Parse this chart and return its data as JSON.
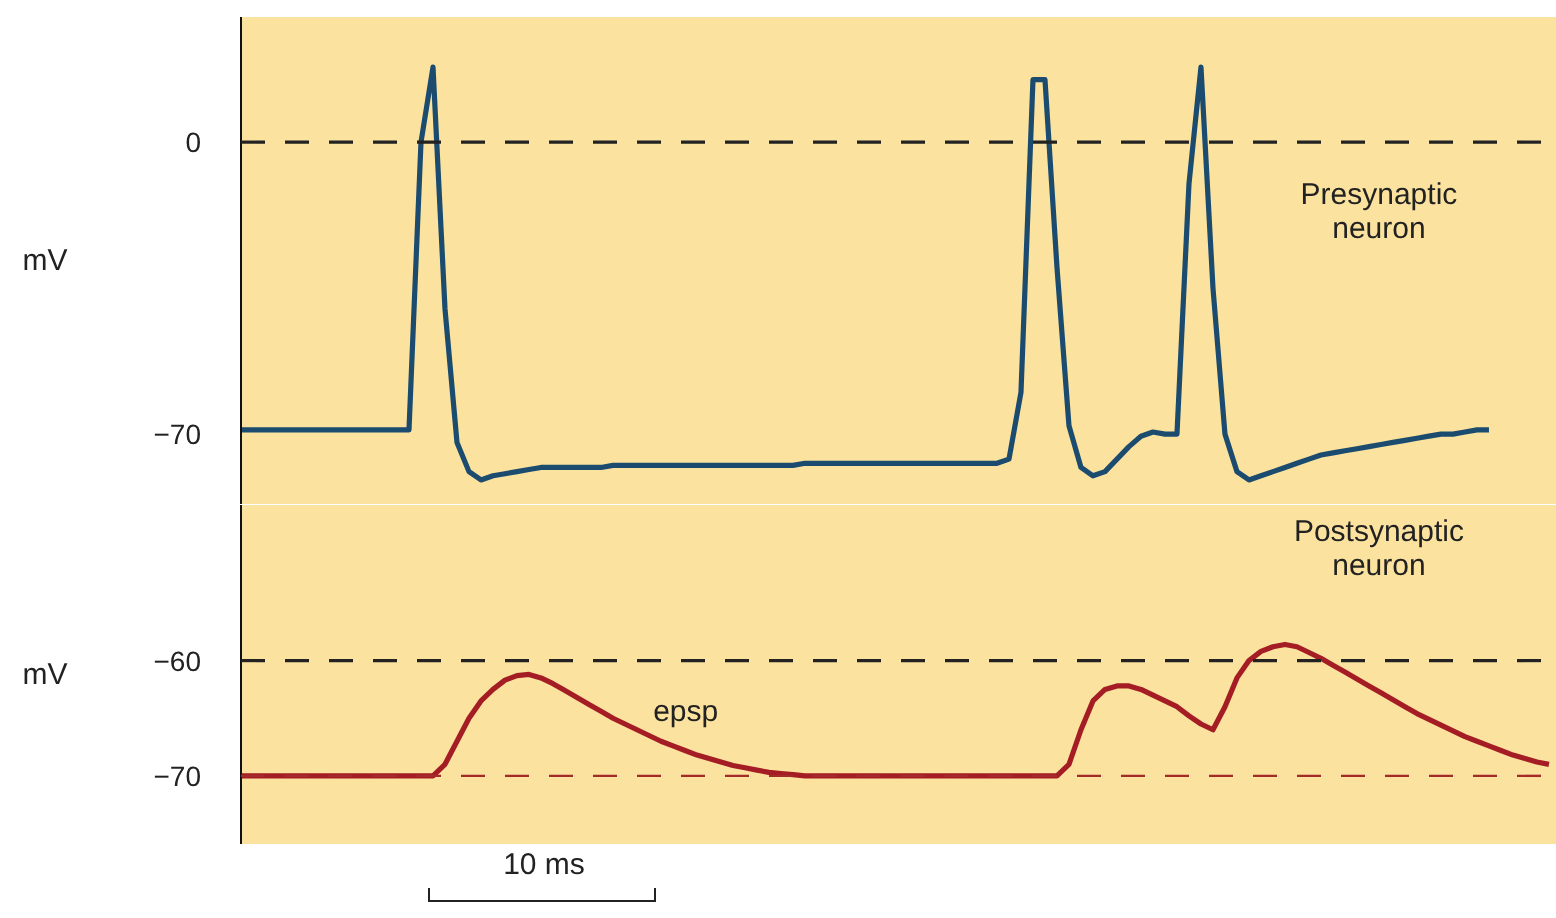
{
  "chart_data": [
    {
      "type": "line",
      "ylabel": "mV",
      "ylim": [
        -87,
        30
      ],
      "yticks": [
        0,
        -70
      ],
      "grid": false,
      "tick_labels": "y",
      "categories": [
        null,
        null,
        null,
        null,
        null,
        null,
        null,
        null,
        null,
        null,
        null,
        null,
        null,
        null,
        null,
        null,
        null,
        null,
        null,
        null,
        null,
        null,
        null,
        null,
        null,
        null,
        null,
        null,
        null,
        null,
        null,
        null,
        null,
        null,
        null,
        null,
        null,
        null,
        null,
        null,
        null,
        null,
        null,
        null,
        null,
        null,
        null,
        null,
        null,
        null,
        null,
        null,
        null,
        null,
        null,
        null,
        null,
        null,
        null,
        null,
        null,
        null,
        null,
        null,
        null,
        null,
        null,
        null,
        null,
        null,
        null,
        null,
        null,
        null,
        null,
        null,
        null,
        null,
        null,
        null,
        null,
        null,
        null,
        null,
        null,
        null,
        null,
        null,
        null,
        null,
        null,
        null,
        null,
        null,
        null,
        null,
        null,
        null,
        null,
        null,
        null,
        null,
        null,
        null,
        null,
        null,
        null,
        null,
        null,
        null
      ],
      "ref_lines": [
        {
          "axis": "y",
          "value": 0,
          "color": "#222222",
          "line_style": "dashed"
        }
      ],
      "series": [
        {
          "name": "Presynaptic neuron",
          "color": "#1b4b6e",
          "values": [
            -69,
            -69,
            -69,
            -69,
            -69,
            -69,
            -69,
            -69,
            -69,
            -69,
            -69,
            -69,
            -69,
            -69,
            -69,
            0,
            18,
            -40,
            -72,
            -79,
            -81,
            -80,
            -79.5,
            -79,
            -78.5,
            -78,
            -78,
            -78,
            -78,
            -78,
            -78,
            -77.5,
            -77.5,
            -77.5,
            -77.5,
            -77.5,
            -77.5,
            -77.5,
            -77.5,
            -77.5,
            -77.5,
            -77.5,
            -77.5,
            -77.5,
            -77.5,
            -77.5,
            -77.5,
            -77,
            -77,
            -77,
            -77,
            -77,
            -77,
            -77,
            -77,
            -77,
            -77,
            -77,
            -77,
            -77,
            -77,
            -77,
            -77,
            -77,
            -76,
            -60,
            15,
            15,
            -30,
            -68,
            -78,
            -80,
            -79,
            -76,
            -73,
            -70.5,
            -69.5,
            -70,
            -70,
            -10,
            18,
            -35,
            -70,
            -79,
            -81,
            -80,
            -79,
            -78,
            -77,
            -76,
            -75,
            -74.5,
            -74,
            -73.5,
            -73,
            -72.5,
            -72,
            -71.5,
            -71,
            -70.5,
            -70,
            -70,
            -69.5,
            -69,
            -69,
            null,
            null,
            null,
            null,
            null
          ]
        }
      ]
    },
    {
      "type": "line",
      "ylabel": "mV",
      "ylim": [
        -76,
        -46.5
      ],
      "yticks": [
        -60,
        -70
      ],
      "grid": false,
      "tick_labels": "y",
      "categories": [
        null,
        null,
        null,
        null,
        null,
        null,
        null,
        null,
        null,
        null,
        null,
        null,
        null,
        null,
        null,
        null,
        null,
        null,
        null,
        null,
        null,
        null,
        null,
        null,
        null,
        null,
        null,
        null,
        null,
        null,
        null,
        null,
        null,
        null,
        null,
        null,
        null,
        null,
        null,
        null,
        null,
        null,
        null,
        null,
        null,
        null,
        null,
        null,
        null,
        null,
        null,
        null,
        null,
        null,
        null,
        null,
        null,
        null,
        null,
        null,
        null,
        null,
        null,
        null,
        null,
        null,
        null,
        null,
        null,
        null,
        null,
        null,
        null,
        null,
        null,
        null,
        null,
        null,
        null,
        null,
        null,
        null,
        null,
        null,
        null,
        null,
        null,
        null,
        null,
        null,
        null,
        null,
        null,
        null,
        null,
        null,
        null,
        null,
        null,
        null,
        null,
        null,
        null,
        null,
        null,
        null,
        null,
        null,
        null,
        null
      ],
      "ref_lines": [
        {
          "axis": "y",
          "value": -60,
          "color": "#222222",
          "line_style": "dashed"
        },
        {
          "axis": "y",
          "value": -70,
          "color": "#a52a2a",
          "line_style": "dashed"
        }
      ],
      "annotations": [
        "epsp",
        "10 ms"
      ],
      "series": [
        {
          "name": "Postsynaptic neuron",
          "color": "#a51d24",
          "values": [
            -70,
            -70,
            -70,
            -70,
            -70,
            -70,
            -70,
            -70,
            -70,
            -70,
            -70,
            -70,
            -70,
            -70,
            -70,
            -70,
            -70,
            -69,
            -67,
            -65,
            -63.5,
            -62.5,
            -61.7,
            -61.3,
            -61.2,
            -61.5,
            -62,
            -62.6,
            -63.2,
            -63.8,
            -64.4,
            -65,
            -65.5,
            -66,
            -66.5,
            -67,
            -67.4,
            -67.8,
            -68.2,
            -68.5,
            -68.8,
            -69.1,
            -69.3,
            -69.5,
            -69.7,
            -69.8,
            -69.9,
            -70,
            -70,
            -70,
            -70,
            -70,
            -70,
            -70,
            -70,
            -70,
            -70,
            -70,
            -70,
            -70,
            -70,
            -70,
            -70,
            -70,
            -70,
            -70,
            -70,
            -70,
            -70,
            -69,
            -66,
            -63.5,
            -62.5,
            -62.2,
            -62.2,
            -62.5,
            -63,
            -63.5,
            -64,
            -64.8,
            -65.5,
            -66,
            -64,
            -61.5,
            -60,
            -59.2,
            -58.8,
            -58.6,
            -58.8,
            -59.3,
            -59.8,
            -60.4,
            -61,
            -61.6,
            -62.2,
            -62.8,
            -63.4,
            -64,
            -64.6,
            -65.1,
            -65.6,
            -66.1,
            -66.6,
            -67,
            -67.4,
            -67.8,
            -68.2,
            -68.5,
            -68.8,
            -69
          ]
        }
      ]
    }
  ]
}
